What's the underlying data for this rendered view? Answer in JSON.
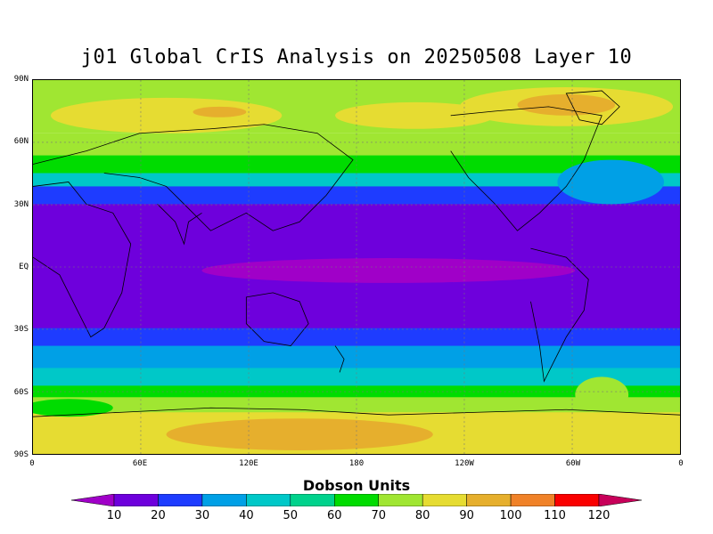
{
  "title": "j01 Global CrIS Analysis on 20250508 Layer 10",
  "lat_labels": [
    "90N",
    "60N",
    "30N",
    "EQ",
    "30S",
    "60S",
    "90S"
  ],
  "lon_labels": [
    "0",
    "60E",
    "120E",
    "180",
    "120W",
    "60W",
    "0"
  ],
  "colorbar": {
    "title": "Dobson Units",
    "ticks": [
      "10",
      "20",
      "30",
      "40",
      "50",
      "60",
      "70",
      "80",
      "90",
      "100",
      "110",
      "120"
    ],
    "colors": [
      "#a000c8",
      "#6e00dc",
      "#1e3cff",
      "#00a0e6",
      "#00c8c8",
      "#00d28c",
      "#00dc00",
      "#a0e632",
      "#e6dc32",
      "#e6af2d",
      "#f08228",
      "#fa0000",
      "#c8005a"
    ]
  }
}
